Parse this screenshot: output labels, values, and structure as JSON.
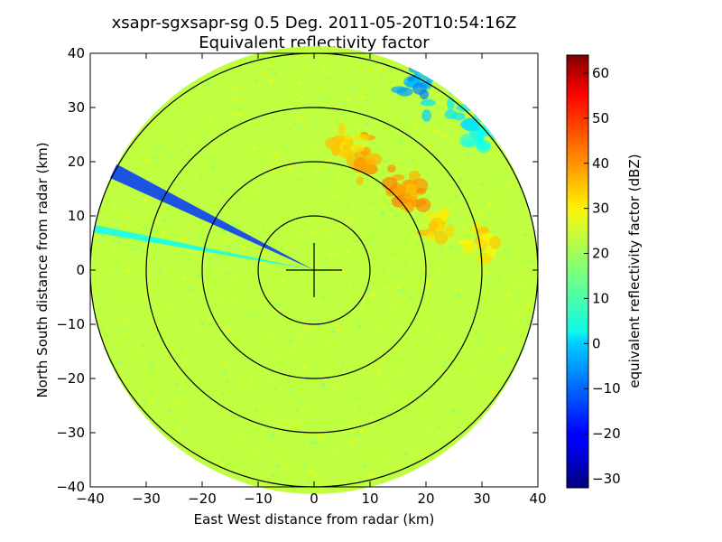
{
  "chart_data": {
    "type": "heatmap",
    "title_line1": "xsapr-sgxsapr-sg 0.5 Deg. 2011-05-20T10:54:16Z",
    "title_line2": "Equivalent reflectivity factor",
    "xlabel": "East West distance from radar (km)",
    "ylabel": "North South distance from radar (km)",
    "xlim": [
      -40,
      40
    ],
    "ylim": [
      -40,
      40
    ],
    "x_ticks": [
      -40,
      -30,
      -20,
      -10,
      0,
      10,
      20,
      30,
      40
    ],
    "y_ticks": [
      -40,
      -30,
      -20,
      -10,
      0,
      10,
      20,
      30,
      40
    ],
    "range_rings_km": [
      10,
      20,
      30,
      40
    ],
    "crosshair_km": 5,
    "max_range_km": 40,
    "background_dbz": 22,
    "features": [
      {
        "kind": "cell",
        "x": 10,
        "y": 20,
        "dbz": 37,
        "note_size": 5
      },
      {
        "kind": "cell",
        "x": 15,
        "y": 15,
        "dbz": 38,
        "note_size": 4
      },
      {
        "kind": "cell",
        "x": 18,
        "y": 14,
        "dbz": 36,
        "note_size": 3
      },
      {
        "kind": "cell",
        "x": 6,
        "y": 24,
        "dbz": 33,
        "note_size": 3
      },
      {
        "kind": "cell",
        "x": 22,
        "y": 8,
        "dbz": 32,
        "note_size": 3
      },
      {
        "kind": "cell",
        "x": 30,
        "y": 5,
        "dbz": 31,
        "note_size": 3
      },
      {
        "kind": "weak",
        "x": 25,
        "y": 30,
        "dbz": 2,
        "note_size": 6
      },
      {
        "kind": "weak",
        "x": 18,
        "y": 35,
        "dbz": -5,
        "note_size": 4
      },
      {
        "kind": "weak",
        "x": 30,
        "y": 25,
        "dbz": 5,
        "note_size": 4
      }
    ],
    "beam_blockages": [
      {
        "azimuth_deg": 297,
        "width_deg": 4,
        "dbz": -15
      },
      {
        "azimuth_deg": 281,
        "width_deg": 2,
        "dbz": 5
      }
    ],
    "colorbar": {
      "label": "equivalent reflectivity factor (dBZ)",
      "vmin": -32,
      "vmax": 64,
      "ticks": [
        -30,
        -20,
        -10,
        0,
        10,
        20,
        30,
        40,
        50,
        60
      ],
      "colormap": "jet"
    }
  }
}
